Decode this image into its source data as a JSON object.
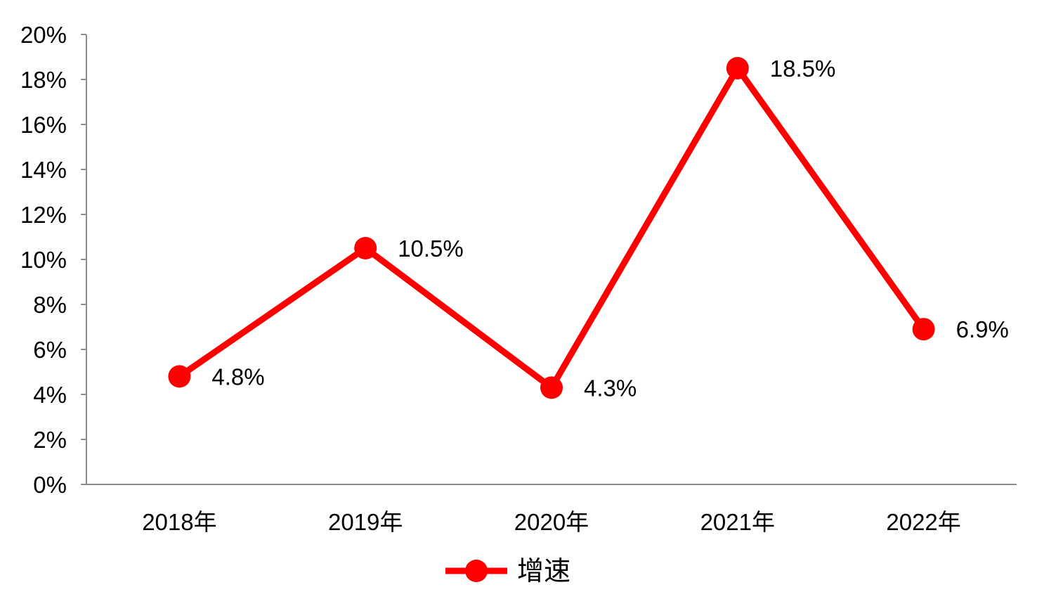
{
  "chart_data": {
    "type": "line",
    "title": "",
    "xlabel": "",
    "ylabel": "",
    "categories": [
      "2018年",
      "2019年",
      "2020年",
      "2021年",
      "2022年"
    ],
    "series": [
      {
        "name": "增速",
        "values": [
          4.8,
          10.5,
          4.3,
          18.5,
          6.9
        ],
        "value_labels": [
          "4.8%",
          "10.5%",
          "4.3%",
          "18.5%",
          "6.9%"
        ],
        "color": "#ff0000",
        "marker": "circle"
      }
    ],
    "ylim": [
      0,
      20
    ],
    "y_ticks": [
      0,
      2,
      4,
      6,
      8,
      10,
      12,
      14,
      16,
      18,
      20
    ],
    "y_tick_labels": [
      "0%",
      "2%",
      "4%",
      "6%",
      "8%",
      "10%",
      "12%",
      "14%",
      "16%",
      "18%",
      "20%"
    ],
    "grid": false,
    "legend": {
      "position": "bottom"
    }
  }
}
